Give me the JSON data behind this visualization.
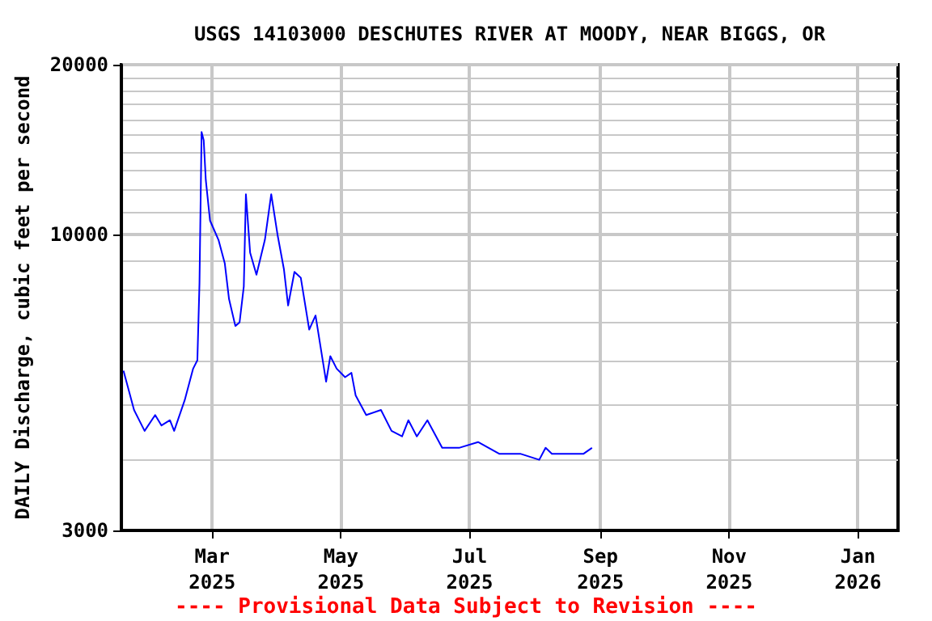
{
  "chart_data": {
    "type": "line",
    "title": "USGS 14103000 DESCHUTES RIVER AT MOODY, NEAR BIGGS, OR",
    "ylabel": "DAILY Discharge, cubic feet per second",
    "annotations": [
      "---- Provisional Data Subject to Revision ----"
    ],
    "log": true,
    "grid": true,
    "marker": "none",
    "line_style": "solid",
    "xlim": [
      "2025-01-17",
      "2026-01-20"
    ],
    "xticks": [
      {
        "value": "2025-03-01",
        "label": "Mar\n2025"
      },
      {
        "value": "2025-05-01",
        "label": "May\n2025"
      },
      {
        "value": "2025-07-01",
        "label": "Jul\n2025"
      },
      {
        "value": "2025-09-01",
        "label": "Sep\n2025"
      },
      {
        "value": "2025-11-01",
        "label": "Nov\n2025"
      },
      {
        "value": "2026-01-01",
        "label": "Jan\n2026"
      }
    ],
    "ylim": [
      3000,
      20000
    ],
    "yticks": [
      3000,
      10000,
      20000
    ],
    "x": [
      "2025-01-18",
      "2025-01-23",
      "2025-01-28",
      "2025-02-02",
      "2025-02-05",
      "2025-02-09",
      "2025-02-11",
      "2025-02-16",
      "2025-02-20",
      "2025-02-22",
      "2025-02-23",
      "2025-02-24",
      "2025-02-25",
      "2025-02-26",
      "2025-02-28",
      "2025-03-04",
      "2025-03-07",
      "2025-03-09",
      "2025-03-12",
      "2025-03-14",
      "2025-03-16",
      "2025-03-17",
      "2025-03-19",
      "2025-03-22",
      "2025-03-26",
      "2025-03-29",
      "2025-04-01",
      "2025-04-04",
      "2025-04-06",
      "2025-04-09",
      "2025-04-12",
      "2025-04-16",
      "2025-04-19",
      "2025-04-24",
      "2025-04-26",
      "2025-04-29",
      "2025-05-03",
      "2025-05-06",
      "2025-05-08",
      "2025-05-13",
      "2025-05-20",
      "2025-05-25",
      "2025-05-30",
      "2025-06-02",
      "2025-06-06",
      "2025-06-11",
      "2025-06-18",
      "2025-06-26",
      "2025-07-05",
      "2025-07-15",
      "2025-07-25",
      "2025-08-03",
      "2025-08-06",
      "2025-08-09",
      "2025-08-13",
      "2025-08-18",
      "2025-08-24",
      "2025-08-28"
    ],
    "series": [
      {
        "color": "#0000ff",
        "values": [
          5750,
          4900,
          4500,
          4800,
          4600,
          4700,
          4500,
          5100,
          5800,
          6000,
          8200,
          15200,
          14700,
          12500,
          10600,
          9800,
          8900,
          7700,
          6900,
          7000,
          8100,
          11800,
          9300,
          8500,
          9800,
          11800,
          10000,
          8700,
          7500,
          8600,
          8400,
          6800,
          7200,
          5500,
          6100,
          5800,
          5600,
          5700,
          5200,
          4800,
          4900,
          4500,
          4400,
          4700,
          4400,
          4700,
          4200,
          4200,
          4300,
          4100,
          4100,
          4000,
          4200,
          4100,
          4100,
          4100,
          4100,
          4200
        ]
      }
    ]
  }
}
